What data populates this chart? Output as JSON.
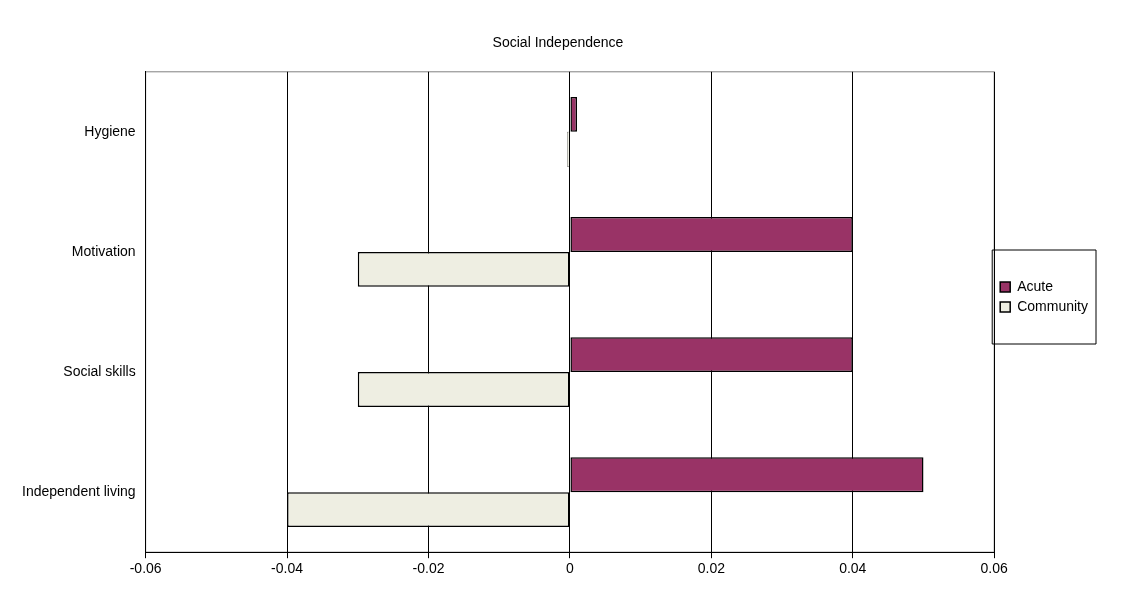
{
  "chart_data": {
    "type": "bar",
    "orientation": "horizontal",
    "title": "Social Independence",
    "categories": [
      "Hygiene",
      "Motivation",
      "Social skills",
      "Independent living"
    ],
    "series": [
      {
        "name": "Acute",
        "color": "#993366",
        "values": [
          0.001,
          0.04,
          0.04,
          0.05
        ]
      },
      {
        "name": "Community",
        "color": "#eeeee2",
        "values": [
          -0.0004,
          -0.03,
          -0.03,
          -0.04
        ]
      }
    ],
    "xlim": [
      -0.06,
      0.06
    ],
    "xticks": [
      -0.06,
      -0.04,
      -0.02,
      0,
      0.02,
      0.04,
      0.06
    ],
    "grid": "x",
    "legend": "right"
  }
}
